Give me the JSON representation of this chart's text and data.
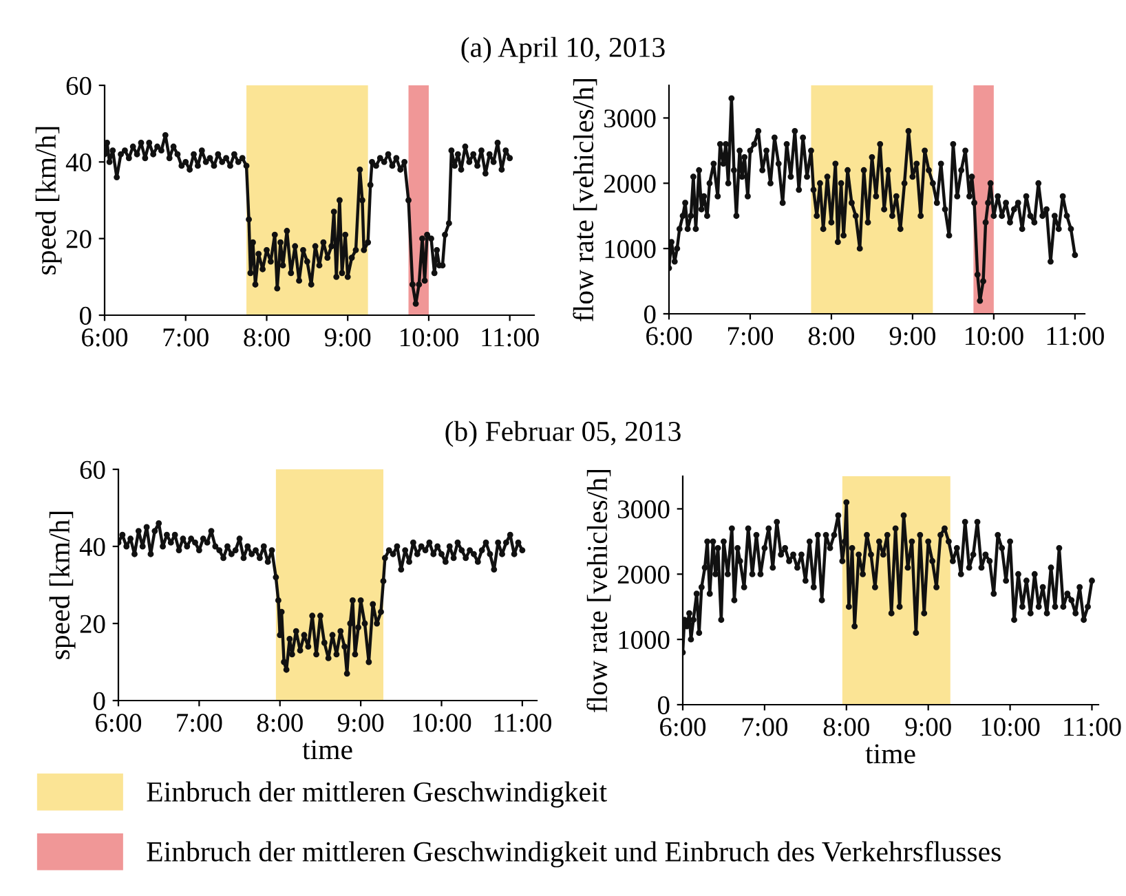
{
  "chart_data": [
    {
      "type": "line",
      "title": "(a) April 10, 2013",
      "ylabel": "speed [km/h]",
      "xlim": [
        6,
        11.3
      ],
      "xticks": [
        {
          "value": 6,
          "label": "6:00"
        },
        {
          "value": 7,
          "label": "7:00"
        },
        {
          "value": 8,
          "label": "8:00"
        },
        {
          "value": 9,
          "label": "9:00"
        },
        {
          "value": 10,
          "label": "10:00"
        },
        {
          "value": 11,
          "label": "11:00"
        }
      ],
      "ylim": [
        0,
        60
      ],
      "yticks": [
        0,
        20,
        40,
        60
      ],
      "marker": "circle",
      "grid": false,
      "legend": "bottom",
      "bands": [
        {
          "axis": "x",
          "from": 7.75,
          "to": 9.25,
          "label": "Einbruch der mittleren Geschwindigkeit",
          "color": "#fbe495"
        },
        {
          "axis": "x",
          "from": 9.75,
          "to": 10.0,
          "label": "Einbruch der mittleren Geschwindigkeit und Einbruch des Verkehrsflusses",
          "color": "#f09797"
        }
      ],
      "series": [
        {
          "color": "#111111",
          "x": [
            6.0,
            6.03,
            6.06,
            6.1,
            6.15,
            6.2,
            6.25,
            6.3,
            6.35,
            6.4,
            6.45,
            6.5,
            6.55,
            6.6,
            6.65,
            6.7,
            6.75,
            6.8,
            6.85,
            6.9,
            6.95,
            7.0,
            7.05,
            7.1,
            7.15,
            7.2,
            7.25,
            7.3,
            7.35,
            7.4,
            7.45,
            7.5,
            7.55,
            7.6,
            7.65,
            7.7,
            7.75,
            7.78,
            7.8,
            7.83,
            7.86,
            7.9,
            7.95,
            8.0,
            8.05,
            8.1,
            8.13,
            8.17,
            8.2,
            8.25,
            8.3,
            8.35,
            8.4,
            8.45,
            8.5,
            8.55,
            8.6,
            8.65,
            8.7,
            8.75,
            8.8,
            8.83,
            8.86,
            8.9,
            8.93,
            8.97,
            9.0,
            9.05,
            9.1,
            9.15,
            9.18,
            9.2,
            9.25,
            9.28,
            9.3,
            9.35,
            9.4,
            9.45,
            9.5,
            9.55,
            9.6,
            9.65,
            9.7,
            9.75,
            9.8,
            9.84,
            9.88,
            9.92,
            9.95,
            9.98,
            10.03,
            10.07,
            10.1,
            10.13,
            10.17,
            10.2,
            10.25,
            10.28,
            10.32,
            10.36,
            10.4,
            10.45,
            10.5,
            10.55,
            10.6,
            10.65,
            10.7,
            10.75,
            10.8,
            10.85,
            10.9,
            10.95,
            11.0
          ],
          "values": [
            42,
            45,
            40,
            43,
            36,
            42,
            43,
            41,
            44,
            42,
            45,
            41,
            45,
            42,
            44,
            43,
            47,
            41,
            44,
            42,
            39,
            40,
            38,
            42,
            39,
            43,
            40,
            41,
            39,
            42,
            40,
            41,
            39,
            42,
            40,
            41,
            39,
            25,
            11,
            19,
            8,
            16,
            12,
            17,
            14,
            21,
            7,
            19,
            13,
            22,
            11,
            18,
            9,
            17,
            14,
            8,
            18,
            13,
            19,
            15,
            18,
            27,
            10,
            30,
            11,
            21,
            10,
            15,
            17,
            38,
            30,
            17,
            19,
            34,
            40,
            39,
            41,
            40,
            42,
            39,
            41,
            38,
            40,
            30,
            8,
            3,
            8,
            20,
            9,
            21,
            20,
            11,
            17,
            13,
            13,
            21,
            24,
            43,
            39,
            42,
            38,
            44,
            40,
            42,
            39,
            43,
            37,
            42,
            40,
            45,
            38,
            43,
            41
          ]
        }
      ]
    },
    {
      "type": "line",
      "ylabel": "flow rate [vehicles/h]",
      "xlim": [
        6,
        11.12
      ],
      "xticks": [
        {
          "value": 6,
          "label": "6:00"
        },
        {
          "value": 7,
          "label": "7:00"
        },
        {
          "value": 8,
          "label": "8:00"
        },
        {
          "value": 9,
          "label": "9:00"
        },
        {
          "value": 10,
          "label": "10:00"
        },
        {
          "value": 11,
          "label": "11:00"
        }
      ],
      "ylim": [
        0,
        3500
      ],
      "yticks": [
        0,
        1000,
        2000,
        3000
      ],
      "marker": "circle",
      "grid": false,
      "bands": [
        {
          "axis": "x",
          "from": 7.75,
          "to": 9.25,
          "color": "#fbe495"
        },
        {
          "axis": "x",
          "from": 9.75,
          "to": 10.0,
          "color": "#f09797"
        }
      ],
      "series": [
        {
          "color": "#111111",
          "x": [
            6.0,
            6.03,
            6.07,
            6.1,
            6.13,
            6.17,
            6.2,
            6.23,
            6.27,
            6.3,
            6.33,
            6.37,
            6.4,
            6.43,
            6.47,
            6.5,
            6.55,
            6.6,
            6.63,
            6.67,
            6.7,
            6.73,
            6.77,
            6.8,
            6.83,
            6.87,
            6.9,
            6.93,
            6.97,
            7.0,
            7.05,
            7.1,
            7.15,
            7.2,
            7.25,
            7.3,
            7.35,
            7.4,
            7.45,
            7.5,
            7.55,
            7.6,
            7.65,
            7.7,
            7.75,
            7.78,
            7.82,
            7.86,
            7.9,
            7.95,
            8.0,
            8.05,
            8.08,
            8.12,
            8.15,
            8.2,
            8.25,
            8.3,
            8.35,
            8.4,
            8.45,
            8.5,
            8.55,
            8.6,
            8.65,
            8.7,
            8.75,
            8.8,
            8.85,
            8.9,
            8.95,
            9.0,
            9.05,
            9.1,
            9.15,
            9.2,
            9.25,
            9.3,
            9.35,
            9.4,
            9.45,
            9.5,
            9.55,
            9.6,
            9.65,
            9.7,
            9.73,
            9.76,
            9.8,
            9.83,
            9.87,
            9.9,
            9.93,
            9.96,
            10.0,
            10.05,
            10.1,
            10.15,
            10.2,
            10.25,
            10.3,
            10.35,
            10.4,
            10.45,
            10.5,
            10.55,
            10.6,
            10.65,
            10.7,
            10.75,
            10.8,
            10.85,
            10.9,
            10.95,
            11.0
          ],
          "values": [
            700,
            1100,
            800,
            1000,
            1300,
            1500,
            1700,
            1300,
            1500,
            2100,
            1300,
            2200,
            1600,
            1800,
            1500,
            2000,
            2300,
            1800,
            2600,
            2300,
            2600,
            2000,
            3300,
            2200,
            1500,
            2500,
            2100,
            2400,
            1800,
            2500,
            2600,
            2800,
            2200,
            2500,
            2000,
            2700,
            2300,
            1700,
            2600,
            2100,
            2800,
            1900,
            2700,
            2100,
            2500,
            1900,
            1500,
            2000,
            1300,
            2100,
            1400,
            2300,
            1100,
            2000,
            1200,
            2200,
            1700,
            1500,
            1000,
            2200,
            1400,
            2400,
            1800,
            2600,
            1600,
            2200,
            1500,
            1800,
            1300,
            2000,
            2800,
            2100,
            2300,
            1500,
            2500,
            2200,
            2000,
            1700,
            2300,
            1600,
            1200,
            2600,
            1800,
            2200,
            2500,
            1800,
            2100,
            1700,
            600,
            200,
            500,
            1400,
            1700,
            2000,
            1500,
            1800,
            1500,
            1700,
            1400,
            1600,
            1700,
            1300,
            1800,
            1500,
            1400,
            2000,
            1500,
            1600,
            800,
            1500,
            1300,
            1800,
            1500,
            1300,
            900
          ]
        }
      ]
    },
    {
      "type": "line",
      "title": "(b) Februar 05, 2013",
      "xlabel": "time",
      "ylabel": "speed [km/h]",
      "xlim": [
        6,
        11.18
      ],
      "xticks": [
        {
          "value": 6,
          "label": "6:00"
        },
        {
          "value": 7,
          "label": "7:00"
        },
        {
          "value": 8,
          "label": "8:00"
        },
        {
          "value": 9,
          "label": "9:00"
        },
        {
          "value": 10,
          "label": "10:00"
        },
        {
          "value": 11,
          "label": "11:00"
        }
      ],
      "ylim": [
        0,
        60
      ],
      "yticks": [
        0,
        20,
        40,
        60
      ],
      "marker": "circle",
      "grid": false,
      "bands": [
        {
          "axis": "x",
          "from": 7.95,
          "to": 9.28,
          "color": "#fbe495"
        }
      ],
      "series": [
        {
          "color": "#111111",
          "x": [
            6.0,
            6.05,
            6.1,
            6.15,
            6.2,
            6.25,
            6.3,
            6.35,
            6.4,
            6.45,
            6.5,
            6.55,
            6.6,
            6.65,
            6.7,
            6.75,
            6.8,
            6.85,
            6.9,
            6.95,
            7.0,
            7.05,
            7.1,
            7.15,
            7.2,
            7.25,
            7.3,
            7.35,
            7.4,
            7.45,
            7.5,
            7.55,
            7.6,
            7.65,
            7.7,
            7.75,
            7.8,
            7.85,
            7.9,
            7.95,
            7.98,
            8.0,
            8.02,
            8.05,
            8.08,
            8.12,
            8.15,
            8.2,
            8.25,
            8.3,
            8.35,
            8.4,
            8.45,
            8.5,
            8.55,
            8.6,
            8.65,
            8.7,
            8.75,
            8.8,
            8.83,
            8.87,
            8.9,
            8.93,
            8.97,
            9.0,
            9.05,
            9.1,
            9.15,
            9.2,
            9.25,
            9.28,
            9.3,
            9.35,
            9.4,
            9.45,
            9.5,
            9.55,
            9.6,
            9.65,
            9.7,
            9.75,
            9.8,
            9.85,
            9.9,
            9.95,
            10.0,
            10.05,
            10.1,
            10.15,
            10.2,
            10.25,
            10.3,
            10.35,
            10.4,
            10.45,
            10.5,
            10.55,
            10.6,
            10.65,
            10.7,
            10.75,
            10.8,
            10.85,
            10.9,
            10.95,
            11.0
          ],
          "values": [
            41,
            43,
            40,
            42,
            38,
            44,
            40,
            45,
            38,
            44,
            46,
            40,
            43,
            41,
            43,
            39,
            42,
            40,
            42,
            41,
            39,
            42,
            41,
            44,
            40,
            39,
            37,
            40,
            38,
            39,
            42,
            37,
            40,
            38,
            39,
            37,
            40,
            36,
            39,
            32,
            26,
            17,
            23,
            10,
            8,
            16,
            12,
            18,
            13,
            17,
            14,
            22,
            12,
            22,
            15,
            11,
            17,
            12,
            18,
            14,
            7,
            20,
            26,
            12,
            19,
            26,
            20,
            10,
            25,
            20,
            23,
            31,
            37,
            39,
            38,
            40,
            34,
            39,
            36,
            41,
            38,
            40,
            39,
            41,
            38,
            40,
            38,
            36,
            40,
            37,
            41,
            39,
            37,
            39,
            38,
            36,
            39,
            41,
            38,
            34,
            41,
            38,
            41,
            43,
            38,
            41,
            39
          ]
        }
      ]
    },
    {
      "type": "line",
      "xlabel": "time",
      "ylabel": "flow rate [vehicles/h]",
      "xlim": [
        6,
        11.08
      ],
      "xticks": [
        {
          "value": 6,
          "label": "6:00"
        },
        {
          "value": 7,
          "label": "7:00"
        },
        {
          "value": 8,
          "label": "8:00"
        },
        {
          "value": 9,
          "label": "9:00"
        },
        {
          "value": 10,
          "label": "10:00"
        },
        {
          "value": 11,
          "label": "11:00"
        }
      ],
      "ylim": [
        0,
        3500
      ],
      "yticks": [
        0,
        1000,
        2000,
        3000
      ],
      "marker": "circle",
      "grid": false,
      "bands": [
        {
          "axis": "x",
          "from": 7.95,
          "to": 9.27,
          "color": "#fbe495"
        }
      ],
      "series": [
        {
          "color": "#111111",
          "x": [
            6.0,
            6.02,
            6.05,
            6.08,
            6.1,
            6.13,
            6.17,
            6.2,
            6.23,
            6.27,
            6.3,
            6.33,
            6.37,
            6.4,
            6.43,
            6.47,
            6.5,
            6.55,
            6.6,
            6.63,
            6.67,
            6.7,
            6.75,
            6.8,
            6.85,
            6.9,
            6.95,
            7.0,
            7.05,
            7.1,
            7.15,
            7.2,
            7.25,
            7.3,
            7.35,
            7.4,
            7.45,
            7.5,
            7.55,
            7.6,
            7.65,
            7.7,
            7.75,
            7.8,
            7.85,
            7.9,
            7.95,
            7.98,
            8.0,
            8.03,
            8.07,
            8.1,
            8.15,
            8.2,
            8.25,
            8.3,
            8.35,
            8.4,
            8.45,
            8.5,
            8.55,
            8.6,
            8.65,
            8.7,
            8.75,
            8.8,
            8.85,
            8.9,
            8.95,
            9.0,
            9.05,
            9.1,
            9.15,
            9.2,
            9.25,
            9.3,
            9.35,
            9.4,
            9.45,
            9.5,
            9.55,
            9.6,
            9.65,
            9.7,
            9.75,
            9.8,
            9.85,
            9.9,
            9.95,
            10.0,
            10.05,
            10.1,
            10.15,
            10.2,
            10.25,
            10.3,
            10.35,
            10.4,
            10.45,
            10.5,
            10.55,
            10.6,
            10.65,
            10.7,
            10.75,
            10.8,
            10.85,
            10.9,
            10.95,
            11.0
          ],
          "values": [
            800,
            1300,
            1200,
            1400,
            1000,
            1300,
            1700,
            1100,
            1800,
            2100,
            2500,
            1700,
            2500,
            2000,
            2400,
            1300,
            2500,
            2000,
            2700,
            1600,
            2400,
            2200,
            1800,
            2700,
            2000,
            2600,
            2000,
            2400,
            2700,
            2100,
            2800,
            2300,
            2400,
            2200,
            2300,
            2100,
            2300,
            1900,
            2500,
            1800,
            2600,
            1600,
            2600,
            2400,
            2600,
            2900,
            2200,
            2500,
            3100,
            1500,
            2400,
            1200,
            2300,
            2000,
            2600,
            2300,
            1800,
            2500,
            2300,
            2600,
            1400,
            2700,
            1500,
            2900,
            2100,
            2500,
            1100,
            2600,
            1400,
            2500,
            2200,
            1800,
            2600,
            2700,
            2500,
            2200,
            2400,
            2000,
            2800,
            2100,
            2300,
            2800,
            2100,
            2300,
            2200,
            1700,
            2600,
            2400,
            1900,
            2500,
            1300,
            2000,
            1500,
            1900,
            1400,
            2000,
            1500,
            1800,
            1400,
            2100,
            1500,
            2400,
            1500,
            1700,
            1600,
            1400,
            1800,
            1300,
            1500,
            1900
          ]
        }
      ]
    }
  ]
}
